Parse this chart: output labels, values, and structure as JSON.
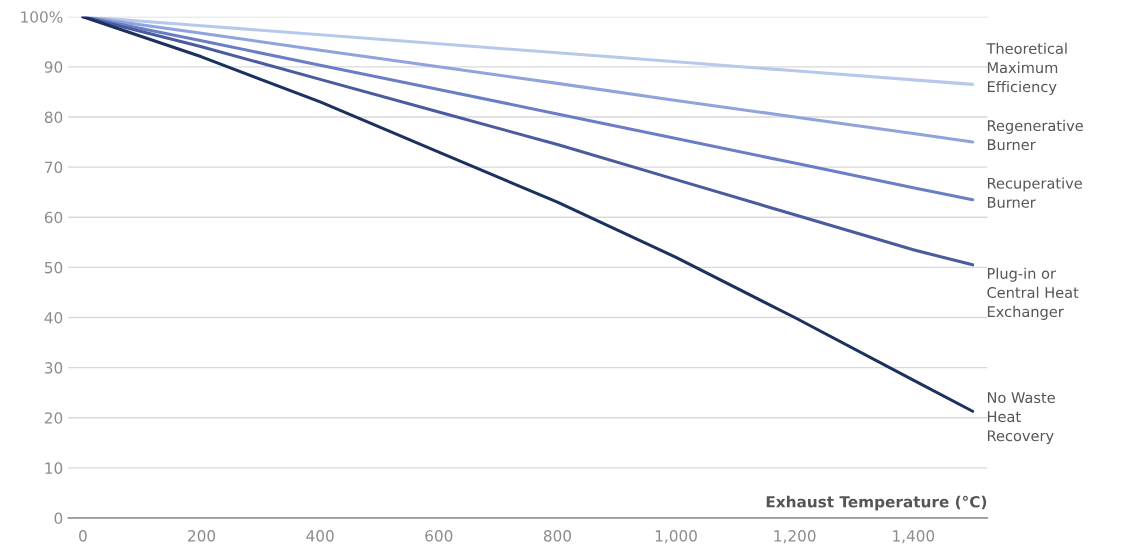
{
  "chart_data": {
    "type": "line",
    "xlabel": "Exhaust Temperature (°C)",
    "x": [
      0,
      200,
      400,
      600,
      800,
      1000,
      1200,
      1400,
      1500
    ],
    "series": [
      {
        "name": "Theoretical\nMaximum\nEfficiency",
        "color": "#b7c9ea",
        "values": [
          100,
          98.2,
          96.4,
          94.6,
          92.8,
          91,
          89.2,
          87.4,
          86.5
        ]
      },
      {
        "name": "Regenerative\nBurner",
        "color": "#8fa3dc",
        "values": [
          100,
          96.7,
          93.3,
          90,
          86.7,
          83.3,
          80,
          76.7,
          75
        ]
      },
      {
        "name": "Recuperative\nBurner",
        "color": "#6a7ec6",
        "values": [
          100,
          95.2,
          90.3,
          85.5,
          80.6,
          75.7,
          70.8,
          65.9,
          63.5
        ]
      },
      {
        "name": "Plug-in or\nCentral Heat\nExchanger",
        "color": "#4a5b9f",
        "values": [
          100,
          94,
          87.5,
          81,
          74.5,
          67.5,
          60.5,
          53.5,
          50.5
        ]
      },
      {
        "name": "No Waste\nHeat\nRecovery",
        "color": "#1b3160",
        "values": [
          100,
          92,
          83,
          73,
          63,
          52,
          40,
          27.5,
          21.3
        ]
      }
    ],
    "xlim": [
      -25,
      1525
    ],
    "ylim": [
      0,
      100
    ],
    "xticks": [
      0,
      200,
      400,
      600,
      800,
      {
        "value": 1000,
        "label": "1,000"
      },
      {
        "value": 1200,
        "label": "1,200"
      },
      {
        "value": 1400,
        "label": "1,400"
      }
    ],
    "yticks": [
      0,
      10,
      20,
      30,
      40,
      50,
      60,
      70,
      80,
      90,
      {
        "value": 100,
        "label": "100%"
      }
    ],
    "grid": "y",
    "legend": false
  }
}
